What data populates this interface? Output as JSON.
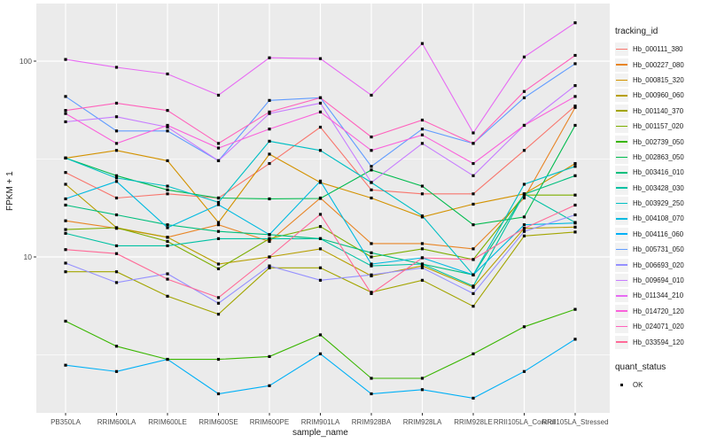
{
  "chart_data": {
    "type": "line",
    "xlabel": "sample_name",
    "ylabel": "FPKM + 1",
    "y_scale": "log10",
    "ylim": [
      1.6,
      200
    ],
    "y_ticks": [
      100,
      10
    ],
    "y_minor_gridlines": [
      31.6,
      3.16
    ],
    "grid": "on",
    "legend_position": "right",
    "point_marker": "small-black-square",
    "categories": [
      "PB350LA",
      "RRIM600LA",
      "RRIM600LE",
      "RRIM600SE",
      "RRIM600PE",
      "RRIM901LA",
      "RRIM928BA",
      "RRIM928LA",
      "RRIM928LE",
      "RRII105LA_Control",
      "RRII105LA_Stressed"
    ],
    "series": [
      {
        "name": "Hb_000111_380",
        "color": "#F8766D",
        "values": [
          27,
          20,
          21,
          20,
          30,
          46,
          22,
          21,
          21,
          35,
          59
        ]
      },
      {
        "name": "Hb_000227_080",
        "color": "#E88526",
        "values": [
          15.3,
          14,
          12.6,
          14.6,
          12,
          20,
          11.7,
          11.7,
          11,
          20,
          58
        ]
      },
      {
        "name": "Hb_000815_320",
        "color": "#D39200",
        "values": [
          32,
          35,
          31,
          15,
          33.5,
          24,
          20,
          16,
          18.6,
          21,
          30
        ]
      },
      {
        "name": "Hb_000960_060",
        "color": "#B79F00",
        "values": [
          23.5,
          14.1,
          12.6,
          9.2,
          10,
          11,
          8,
          9,
          7,
          14,
          14.2
        ]
      },
      {
        "name": "Hb_001140_370",
        "color": "#A3A500",
        "values": [
          8.4,
          8.4,
          6.3,
          5.1,
          8.8,
          8.8,
          6.6,
          7.6,
          5.6,
          12.8,
          13.4
        ]
      },
      {
        "name": "Hb_001157_020",
        "color": "#7CAE00",
        "values": [
          13.8,
          14.1,
          12,
          8.7,
          12.4,
          14.3,
          10,
          11,
          9.7,
          20.7,
          20.7
        ]
      },
      {
        "name": "Hb_002739_050",
        "color": "#39B600",
        "values": [
          4.7,
          3.5,
          3.0,
          3.0,
          3.1,
          4.0,
          2.4,
          2.4,
          3.2,
          4.4,
          5.4
        ]
      },
      {
        "name": "Hb_002863_050",
        "color": "#00BB4E",
        "values": [
          32,
          26,
          22,
          20,
          19.8,
          19.9,
          27.8,
          23,
          14.6,
          16,
          47
        ]
      },
      {
        "name": "Hb_003416_010",
        "color": "#00BF7D",
        "values": [
          18.4,
          16.4,
          14.6,
          13.5,
          13,
          12.4,
          10.5,
          9.2,
          8.1,
          20.9,
          26
        ]
      },
      {
        "name": "Hb_003428_030",
        "color": "#00C1A3",
        "values": [
          13.2,
          11.4,
          11.4,
          12.4,
          12.4,
          12.4,
          9.0,
          9.2,
          7.1,
          21,
          15
        ]
      },
      {
        "name": "Hb_003929_250",
        "color": "#00BFC4",
        "values": [
          32,
          25.3,
          23,
          19,
          39,
          35,
          24,
          16.2,
          8.1,
          23.5,
          29
        ]
      },
      {
        "name": "Hb_004108_070",
        "color": "#00BAE0",
        "values": [
          19.8,
          24.3,
          14.1,
          18.5,
          13,
          24.4,
          9.2,
          9.9,
          8.1,
          14.6,
          14.9
        ]
      },
      {
        "name": "Hb_004116_060",
        "color": "#00B0F6",
        "values": [
          2.8,
          2.6,
          3.0,
          2.0,
          2.2,
          3.2,
          2.0,
          2.1,
          1.9,
          2.6,
          3.8
        ]
      },
      {
        "name": "Hb_005731_050",
        "color": "#619CFF",
        "values": [
          66,
          44,
          44,
          31,
          63,
          65,
          29,
          45,
          38,
          65,
          97
        ]
      },
      {
        "name": "Hb_006693_020",
        "color": "#9590FF",
        "values": [
          9.3,
          7.4,
          8.2,
          5.8,
          9,
          7.6,
          8.1,
          8.8,
          6.5,
          13.5,
          16.4
        ]
      },
      {
        "name": "Hb_009694_010",
        "color": "#C77CFF",
        "values": [
          49,
          52,
          46,
          31,
          54,
          61,
          24,
          38,
          26,
          47,
          75
        ]
      },
      {
        "name": "Hb_011344_210",
        "color": "#E76BF3",
        "values": [
          102,
          93,
          86,
          67,
          104,
          103,
          67,
          123,
          43,
          105,
          157
        ]
      },
      {
        "name": "Hb_014720_120",
        "color": "#FA62DB",
        "values": [
          54,
          38,
          47,
          36,
          45,
          55,
          35,
          42,
          30,
          47,
          66
        ]
      },
      {
        "name": "Hb_024071_020",
        "color": "#FF62BC",
        "values": [
          56,
          61,
          56,
          38,
          55,
          65,
          41,
          50,
          38,
          70,
          107
        ]
      },
      {
        "name": "Hb_033594_120",
        "color": "#FF6A98",
        "values": [
          10.9,
          10.4,
          7.7,
          6.2,
          10,
          16.5,
          6.5,
          9.9,
          9.7,
          14,
          18.4
        ]
      }
    ]
  },
  "legend": {
    "tracking_title": "tracking_id",
    "quant_title": "quant_status",
    "quant_items": [
      {
        "label": "OK"
      }
    ]
  },
  "style": {
    "panel_bg": "#EBEBEB",
    "grid_color": "#FFFFFF",
    "tick_text_color": "#4D4D4D",
    "marker_color": "#000000"
  }
}
